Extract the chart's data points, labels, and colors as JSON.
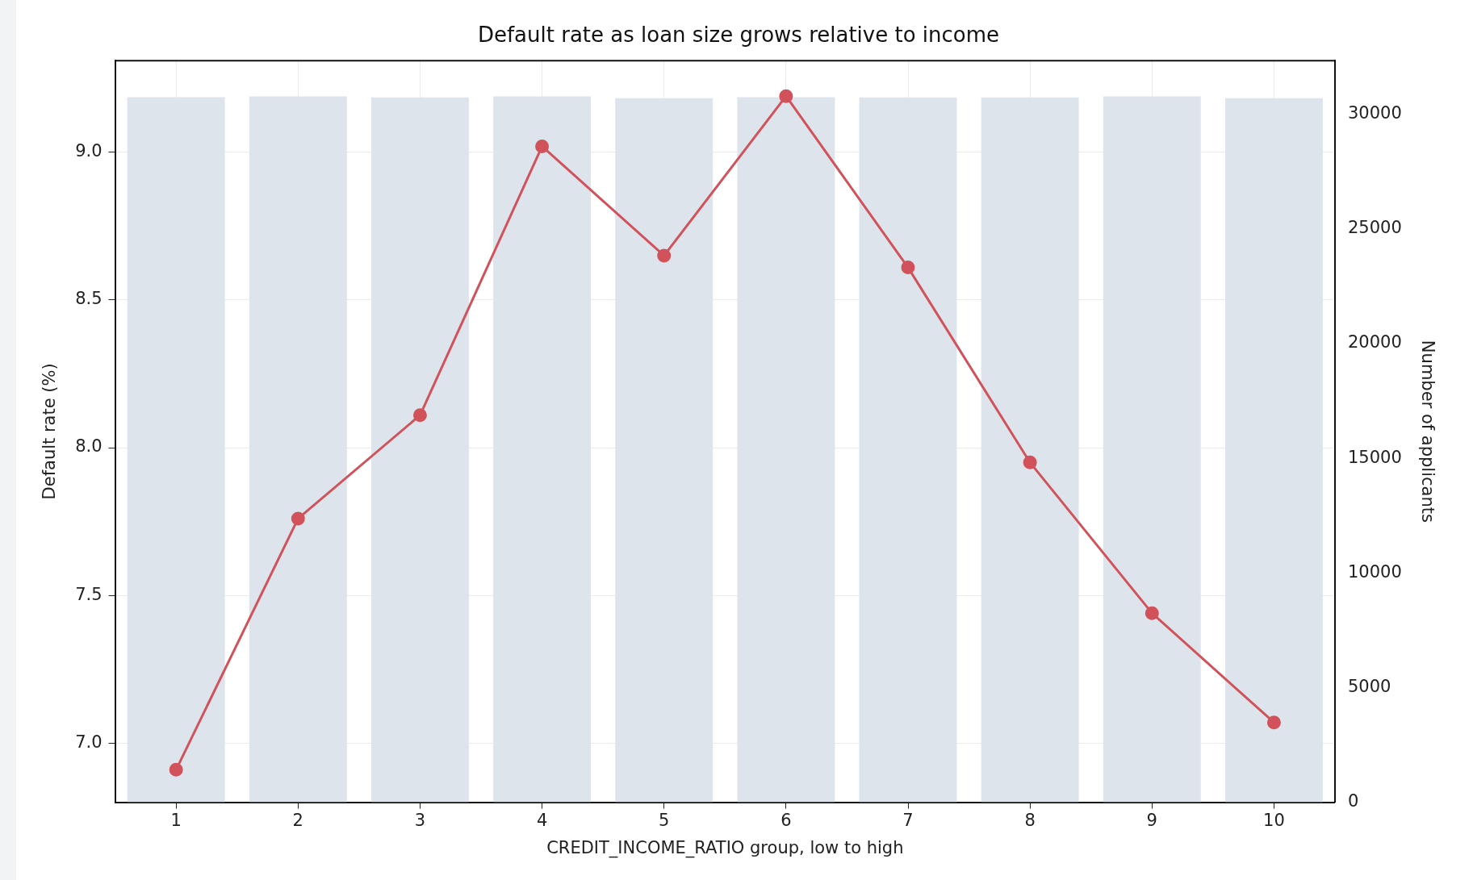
{
  "chart_data": {
    "type": "line",
    "title": "Default rate as loan size grows relative to income",
    "xlabel": "CREDIT_INCOME_RATIO group, low to high",
    "ylabel": "Default rate (%)",
    "y2label": "Number of applicants",
    "categories": [
      "1",
      "2",
      "3",
      "4",
      "5",
      "6",
      "7",
      "8",
      "9",
      "10"
    ],
    "series": [
      {
        "type": "bar",
        "axis": "y2",
        "color": "#dde4ec",
        "values": [
          30750,
          30780,
          30740,
          30780,
          30700,
          30750,
          30740,
          30740,
          30780,
          30700
        ]
      },
      {
        "color": "#d1525a",
        "marker": "circle",
        "values": [
          6.91,
          7.76,
          8.11,
          9.02,
          8.65,
          9.19,
          8.61,
          7.95,
          7.44,
          7.07
        ]
      }
    ],
    "ylim": [
      6.8,
      9.31
    ],
    "yticks": [
      {
        "value": 7,
        "label": "7.0"
      },
      7.5,
      {
        "value": 8,
        "label": "8.0"
      },
      8.5,
      {
        "value": 9,
        "label": "9.0"
      }
    ],
    "y2lim": [
      0,
      32340
    ],
    "y2ticks": [
      0,
      5000,
      10000,
      15000,
      20000,
      25000,
      30000
    ],
    "grid": true,
    "legend": false
  }
}
